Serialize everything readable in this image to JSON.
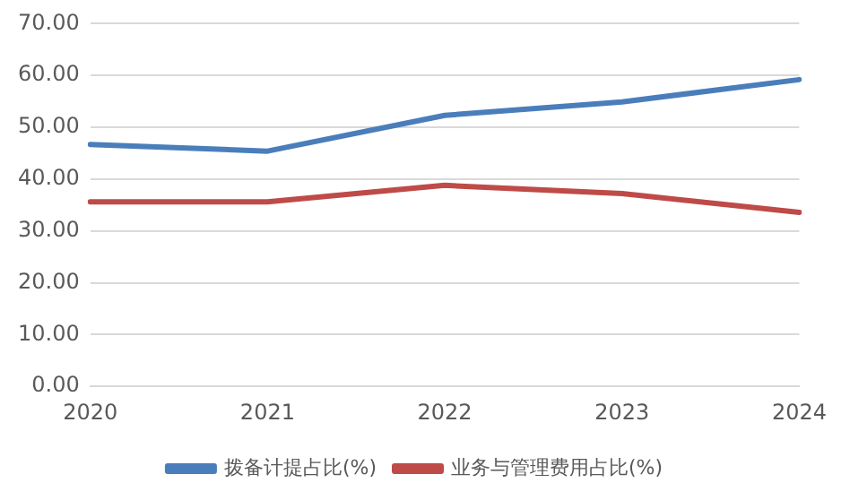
{
  "chart_data": {
    "type": "line",
    "categories": [
      "2020",
      "2021",
      "2022",
      "2023",
      "2024"
    ],
    "series": [
      {
        "name": "拨备计提占比(%)",
        "color": "#4a7ebb",
        "values": [
          46.7,
          45.4,
          52.3,
          54.9,
          59.2
        ]
      },
      {
        "name": "业务与管理费用占比(%)",
        "color": "#be4b48",
        "values": [
          35.6,
          35.6,
          38.8,
          37.2,
          33.6
        ]
      }
    ],
    "ylim": [
      0,
      70
    ],
    "yticks": [
      {
        "value": 0,
        "label": "0.00"
      },
      {
        "value": 10,
        "label": "10.00"
      },
      {
        "value": 20,
        "label": "20.00"
      },
      {
        "value": 30,
        "label": "30.00"
      },
      {
        "value": 40,
        "label": "40.00"
      },
      {
        "value": 50,
        "label": "50.00"
      },
      {
        "value": 60,
        "label": "60.00"
      },
      {
        "value": 70,
        "label": "70.00"
      }
    ],
    "grid": "y",
    "legend": "bottom",
    "marker": "none",
    "line_style": "solid"
  }
}
